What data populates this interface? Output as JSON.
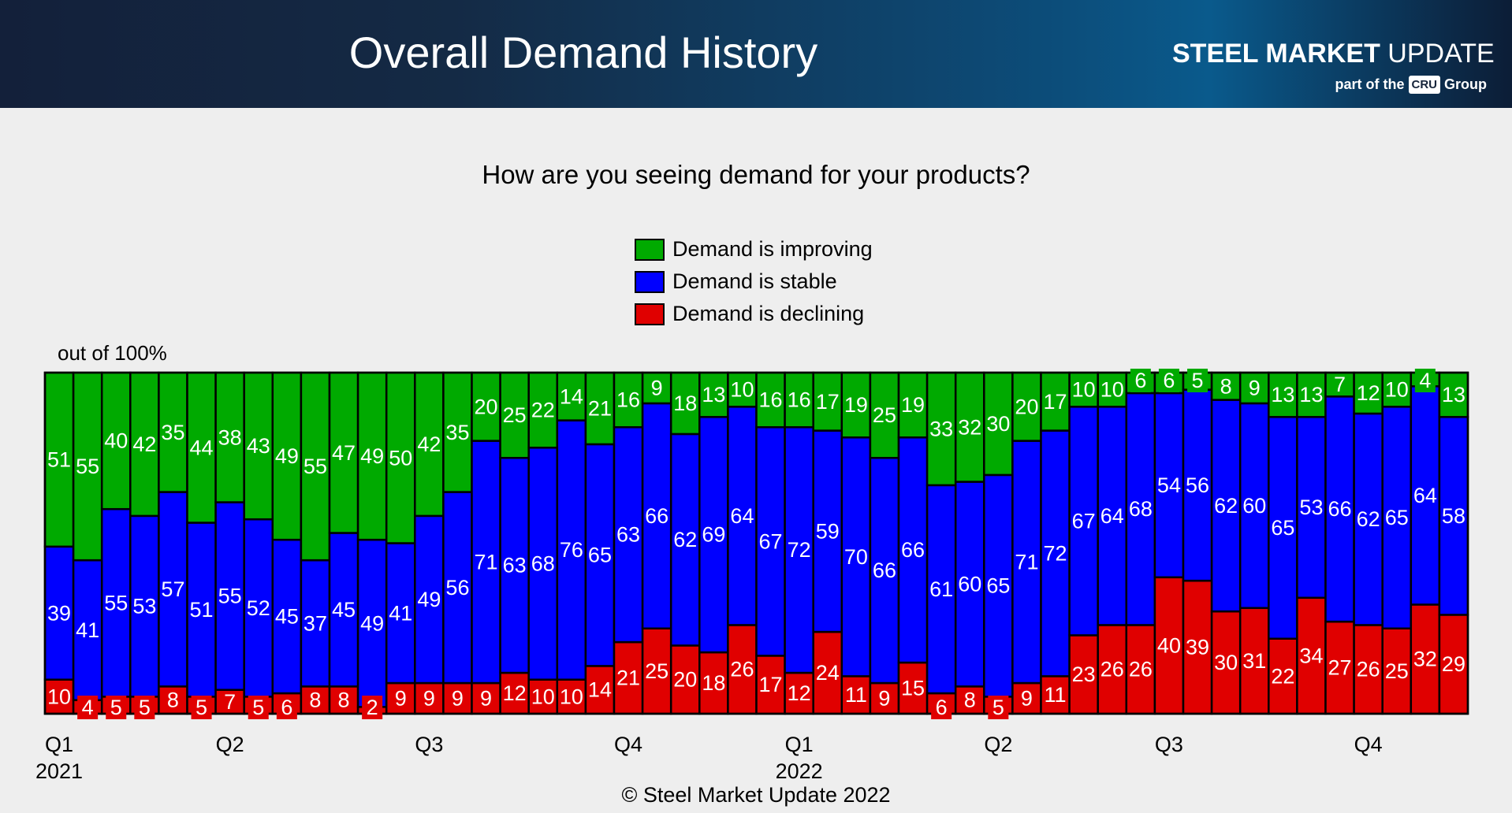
{
  "header": {
    "title": "Overall Demand History",
    "logo": {
      "brand_bold": "STEEL MARKET",
      "brand_light": "UPDATE",
      "sub_prefix": "part of the",
      "cru": "CRU",
      "sub_suffix": "Group"
    }
  },
  "copyright": "© Steel Market Update 2022",
  "chart_data": {
    "type": "bar",
    "stacked": true,
    "title": "How are you seeing demand for your products?",
    "ylabel": "out of 100%",
    "ylim": [
      0,
      100
    ],
    "legend_position": "top-center",
    "grid": false,
    "x_tick_labels": [
      {
        "bar_index": 0,
        "label": "Q1",
        "year": "2021"
      },
      {
        "bar_index": 6,
        "label": "Q2"
      },
      {
        "bar_index": 13,
        "label": "Q3"
      },
      {
        "bar_index": 20,
        "label": "Q4"
      },
      {
        "bar_index": 26,
        "label": "Q1",
        "year": "2022"
      },
      {
        "bar_index": 33,
        "label": "Q2"
      },
      {
        "bar_index": 39,
        "label": "Q3"
      },
      {
        "bar_index": 46,
        "label": "Q4"
      }
    ],
    "series": [
      {
        "name": "Demand is declining",
        "color": "#e00000",
        "values": [
          10,
          4,
          5,
          5,
          8,
          5,
          7,
          5,
          6,
          8,
          8,
          2,
          9,
          9,
          9,
          9,
          12,
          10,
          10,
          14,
          21,
          25,
          20,
          18,
          26,
          17,
          12,
          24,
          11,
          9,
          15,
          6,
          8,
          5,
          9,
          11,
          23,
          26,
          26,
          40,
          39,
          30,
          31,
          22,
          34,
          27,
          26,
          25,
          32,
          29
        ]
      },
      {
        "name": "Demand is stable",
        "color": "#0000ff",
        "values": [
          39,
          41,
          55,
          53,
          57,
          51,
          55,
          52,
          45,
          37,
          45,
          49,
          41,
          49,
          56,
          71,
          63,
          68,
          76,
          65,
          63,
          66,
          62,
          69,
          64,
          67,
          72,
          59,
          70,
          66,
          66,
          61,
          60,
          65,
          71,
          72,
          67,
          64,
          68,
          54,
          56,
          62,
          60,
          65,
          53,
          66,
          62,
          65,
          64,
          58
        ]
      },
      {
        "name": "Demand is improving",
        "color": "#00aa00",
        "values": [
          51,
          55,
          40,
          42,
          35,
          44,
          38,
          43,
          49,
          55,
          47,
          49,
          50,
          42,
          35,
          20,
          25,
          22,
          14,
          21,
          16,
          9,
          18,
          13,
          10,
          16,
          16,
          17,
          19,
          25,
          19,
          33,
          32,
          30,
          20,
          17,
          10,
          10,
          6,
          6,
          5,
          8,
          9,
          13,
          13,
          7,
          12,
          10,
          4,
          13
        ]
      }
    ]
  }
}
